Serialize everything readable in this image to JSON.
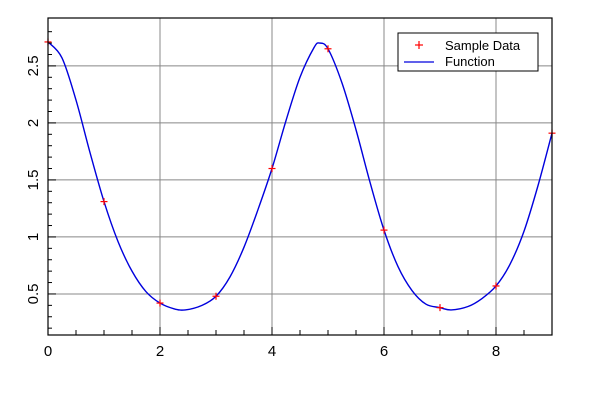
{
  "chart_data": {
    "type": "line",
    "title": "",
    "xlabel": "",
    "ylabel": "",
    "xlim": [
      0,
      9
    ],
    "ylim": [
      0.14,
      2.92
    ],
    "grid": true,
    "legend_position": "top-right",
    "x_ticks": [
      0,
      2,
      4,
      6,
      8
    ],
    "x_tick_labels": [
      "0",
      "2",
      "4",
      "6",
      "8"
    ],
    "y_ticks": [
      0.5,
      1,
      1.5,
      2,
      2.5
    ],
    "y_tick_labels": [
      "0.5",
      "1",
      "1.5",
      "2",
      "2.5"
    ],
    "series": [
      {
        "name": "Sample Data",
        "kind": "scatter",
        "marker": "plus",
        "color": "#ff0000",
        "x": [
          0,
          1,
          2,
          3,
          4,
          5,
          6,
          7,
          8,
          9
        ],
        "y": [
          2.71,
          1.31,
          0.42,
          0.48,
          1.6,
          2.65,
          1.06,
          0.38,
          0.57,
          1.91
        ]
      },
      {
        "name": "Function",
        "kind": "line",
        "color": "#0000dd",
        "x": [
          0,
          0.25,
          0.5,
          0.75,
          1,
          1.25,
          1.5,
          1.75,
          2,
          2.25,
          2.45,
          2.75,
          3,
          3.25,
          3.5,
          3.75,
          4,
          4.25,
          4.5,
          4.75,
          4.85,
          5,
          5.25,
          5.5,
          5.75,
          6,
          6.25,
          6.5,
          6.75,
          7,
          7.2,
          7.5,
          7.75,
          8,
          8.25,
          8.5,
          8.75,
          9
        ],
        "y": [
          2.71,
          2.57,
          2.2,
          1.74,
          1.31,
          0.96,
          0.7,
          0.52,
          0.42,
          0.37,
          0.36,
          0.4,
          0.48,
          0.65,
          0.91,
          1.24,
          1.6,
          2.02,
          2.4,
          2.66,
          2.7,
          2.65,
          2.35,
          1.94,
          1.48,
          1.06,
          0.74,
          0.53,
          0.41,
          0.38,
          0.36,
          0.39,
          0.46,
          0.57,
          0.76,
          1.05,
          1.45,
          1.91
        ]
      }
    ]
  }
}
